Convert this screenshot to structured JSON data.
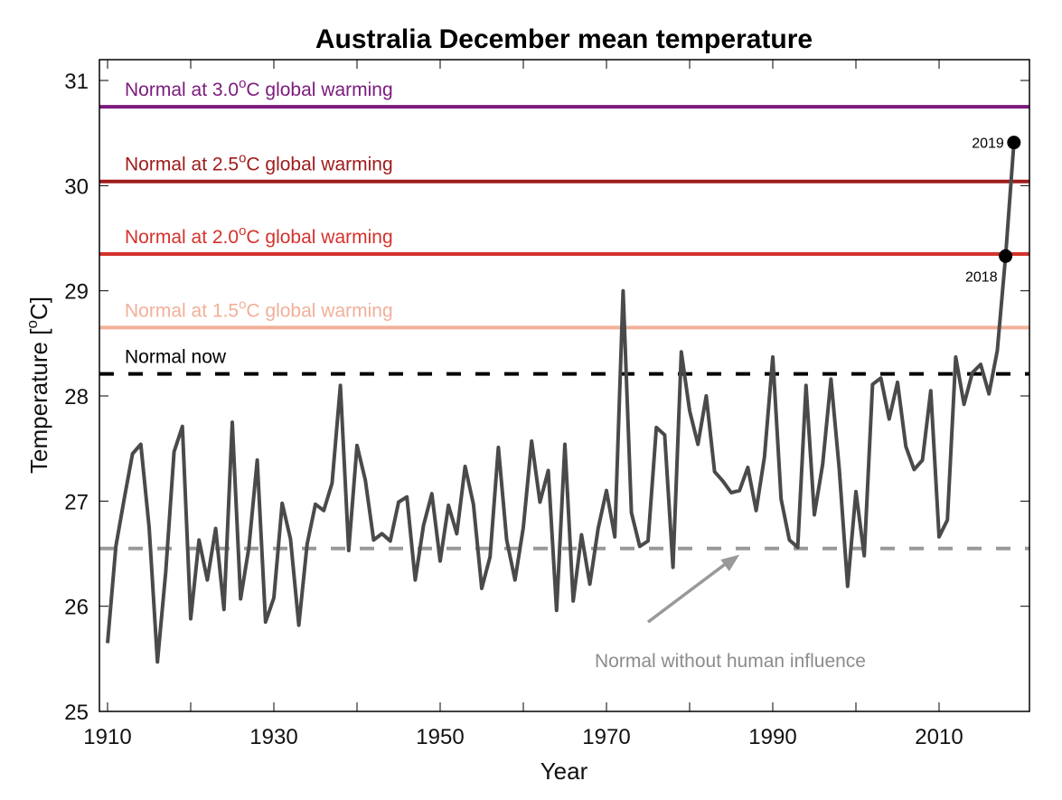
{
  "chart_data": {
    "type": "line",
    "title": "Australia December mean temperature",
    "xlabel": "Year",
    "ylabel": "Temperature [°C]",
    "ylabel_parts": {
      "pre": "Temperature [",
      "sup": "o",
      "post": "C]"
    },
    "xlim": [
      1909,
      2021
    ],
    "ylim": [
      25,
      31.2
    ],
    "xticks": [
      1910,
      1930,
      1950,
      1970,
      1990,
      2010
    ],
    "xminor": [
      1920,
      1940,
      1960,
      1980,
      2000
    ],
    "yticks": [
      25,
      26,
      27,
      28,
      29,
      30,
      31
    ],
    "grid": false,
    "series": [
      {
        "name": "Australia December mean temperature",
        "color": "#4a4a4a",
        "x": [
          1910,
          1911,
          1912,
          1913,
          1914,
          1915,
          1916,
          1917,
          1918,
          1919,
          1920,
          1921,
          1922,
          1923,
          1924,
          1925,
          1926,
          1927,
          1928,
          1929,
          1930,
          1931,
          1932,
          1933,
          1934,
          1935,
          1936,
          1937,
          1938,
          1939,
          1940,
          1941,
          1942,
          1943,
          1944,
          1945,
          1946,
          1947,
          1948,
          1949,
          1950,
          1951,
          1952,
          1953,
          1954,
          1955,
          1956,
          1957,
          1958,
          1959,
          1960,
          1961,
          1962,
          1963,
          1964,
          1965,
          1966,
          1967,
          1968,
          1969,
          1970,
          1971,
          1972,
          1973,
          1974,
          1975,
          1976,
          1977,
          1978,
          1979,
          1980,
          1981,
          1982,
          1983,
          1984,
          1985,
          1986,
          1987,
          1988,
          1989,
          1990,
          1991,
          1992,
          1993,
          1994,
          1995,
          1996,
          1997,
          1998,
          1999,
          2000,
          2001,
          2002,
          2003,
          2004,
          2005,
          2006,
          2007,
          2008,
          2009,
          2010,
          2011,
          2012,
          2013,
          2014,
          2015,
          2016,
          2017,
          2018,
          2019
        ],
        "values": [
          25.65,
          26.57,
          27.02,
          27.45,
          27.54,
          26.75,
          25.47,
          26.33,
          27.47,
          27.71,
          25.88,
          26.63,
          26.25,
          26.74,
          25.97,
          27.75,
          26.07,
          26.56,
          27.39,
          25.85,
          26.08,
          26.98,
          26.64,
          25.82,
          26.59,
          26.97,
          26.91,
          27.17,
          28.1,
          26.53,
          27.53,
          27.2,
          26.63,
          26.69,
          26.62,
          26.99,
          27.04,
          26.25,
          26.77,
          27.07,
          26.43,
          26.96,
          26.69,
          27.33,
          26.97,
          26.17,
          26.47,
          27.51,
          26.63,
          26.25,
          26.75,
          27.57,
          26.99,
          27.29,
          25.96,
          27.54,
          26.05,
          26.68,
          26.21,
          26.74,
          27.1,
          26.66,
          29.0,
          26.89,
          26.57,
          26.62,
          27.7,
          27.63,
          26.37,
          28.42,
          27.86,
          27.54,
          28.0,
          27.28,
          27.19,
          27.08,
          27.1,
          27.32,
          26.91,
          27.42,
          28.37,
          27.02,
          26.63,
          26.56,
          28.1,
          26.87,
          27.35,
          28.16,
          27.3,
          26.19,
          27.09,
          26.48,
          28.11,
          28.17,
          27.78,
          28.13,
          27.52,
          27.3,
          27.39,
          28.05,
          26.66,
          26.82,
          28.37,
          27.92,
          28.22,
          28.3,
          28.02,
          28.43,
          29.33,
          30.41
        ]
      }
    ],
    "reference_lines": [
      {
        "name": "normal-3p0",
        "label_pre": "Normal at 3.0",
        "label_sup": "o",
        "label_post": "C global warming",
        "value": 30.75,
        "color": "#7b1a7d",
        "style": "solid"
      },
      {
        "name": "normal-2p5",
        "label_pre": "Normal at 2.5",
        "label_sup": "o",
        "label_post": "C global warming",
        "value": 30.04,
        "color": "#a01b1b",
        "style": "solid"
      },
      {
        "name": "normal-2p0",
        "label_pre": "Normal at 2.0",
        "label_sup": "o",
        "label_post": "C global warming",
        "value": 29.35,
        "color": "#d4322c",
        "style": "solid"
      },
      {
        "name": "normal-1p5",
        "label_pre": "Normal at 1.5",
        "label_sup": "o",
        "label_post": "C global warming",
        "value": 28.65,
        "color": "#f2b09a",
        "style": "solid"
      },
      {
        "name": "normal-now",
        "label_pre": "Normal now",
        "label_sup": "",
        "label_post": "",
        "value": 28.21,
        "color": "#000000",
        "style": "dashed"
      },
      {
        "name": "normal-natural",
        "label_pre": "",
        "label_sup": "",
        "label_post": "",
        "value": 26.55,
        "color": "#999999",
        "style": "dashed"
      }
    ],
    "highlighted_points": [
      {
        "year": 2018,
        "value": 29.33,
        "label": "2018"
      },
      {
        "year": 2019,
        "value": 30.41,
        "label": "2019"
      }
    ],
    "annotations": [
      {
        "text": "Normal without human influence",
        "arrow_from": [
          1975,
          25.85
        ],
        "arrow_to": [
          1986,
          26.49
        ],
        "color": "#999999"
      }
    ]
  }
}
